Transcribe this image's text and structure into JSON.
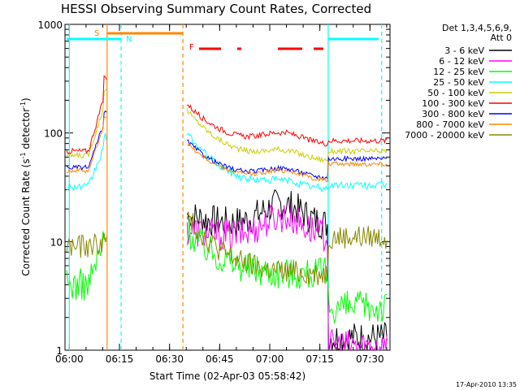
{
  "chart_data": {
    "type": "line",
    "title": "HESSI Observing Summary Count Rates, Corrected",
    "xlabel": "Start Time (02-Apr-03 05:58:42)",
    "ylabel_main": "Corrected Count Rate (s",
    "ylabel_exp1": "-1",
    "ylabel_mid": " detector",
    "ylabel_exp2": "-1",
    "ylabel_end": ")",
    "xlim": [
      0,
      97.3
    ],
    "ylim": [
      1,
      1000
    ],
    "yscale": "log",
    "x_ticks": [
      {
        "x": 1.3,
        "label": "06:00"
      },
      {
        "x": 16.3,
        "label": "06:15"
      },
      {
        "x": 31.3,
        "label": "06:30"
      },
      {
        "x": 46.3,
        "label": "06:45"
      },
      {
        "x": 61.3,
        "label": "07:00"
      },
      {
        "x": 76.3,
        "label": "07:15"
      },
      {
        "x": 91.3,
        "label": "07:30"
      }
    ],
    "y_ticks": [
      {
        "y": 1,
        "label": "1"
      },
      {
        "y": 10,
        "label": "10"
      },
      {
        "y": 100,
        "label": "100"
      },
      {
        "y": 1000,
        "label": "1000"
      }
    ],
    "legend_header": [
      "Det 1,3,4,5,6,9,",
      "Att 0"
    ],
    "series": [
      {
        "name": "3 - 6 keV",
        "color": "#000000"
      },
      {
        "name": "6 - 12 keV",
        "color": "#ff00ff"
      },
      {
        "name": "12 - 25 keV",
        "color": "#00ff00"
      },
      {
        "name": "25 - 50 keV",
        "color": "#00ffff"
      },
      {
        "name": "50 - 100 keV",
        "color": "#cccc00"
      },
      {
        "name": "100 - 300 keV",
        "color": "#ff0000"
      },
      {
        "name": "300 - 800 keV",
        "color": "#0000ff"
      },
      {
        "name": "800 - 7000 keV",
        "color": "#ff8800"
      },
      {
        "name": "7000 - 20000 keV",
        "color": "#888800"
      }
    ],
    "flag_markers": [
      {
        "label": "S",
        "color": "#ff8800"
      },
      {
        "label": "N",
        "color": "#00ffff"
      },
      {
        "label": "F",
        "color": "#ff0000"
      }
    ],
    "vertical_markers": [
      {
        "x": 1.3,
        "color": "#00ffff",
        "style": "solid"
      },
      {
        "x": 12.6,
        "color": "#ff8800",
        "style": "solid"
      },
      {
        "x": 16.8,
        "color": "#00ffff",
        "style": "dashed"
      },
      {
        "x": 35.3,
        "color": "#ff8800",
        "style": "dashed"
      },
      {
        "x": 78.8,
        "color": "#00ffff",
        "style": "solid"
      },
      {
        "x": 94.8,
        "color": "#00ffff",
        "style": "dashed"
      }
    ],
    "grid": false,
    "legend_position": "right"
  },
  "footer": {
    "timestamp": "17-Apr-2010 13:35"
  }
}
